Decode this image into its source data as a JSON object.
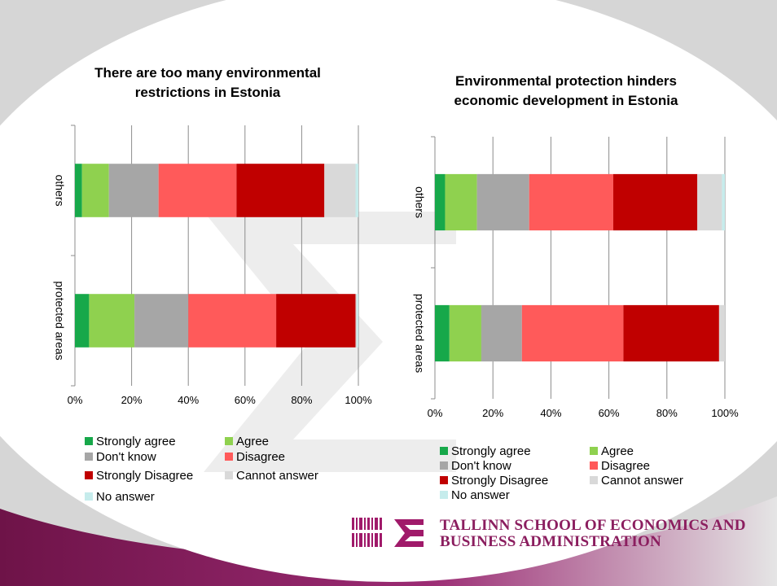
{
  "colors": {
    "Strongly agree": "#17a84a",
    "Agree": "#8fd14f",
    "Don't know": "#a6a6a6",
    "Disagree": "#ff5a5a",
    "Strongly Disagree": "#c00000",
    "Cannot answer": "#d9d9d9",
    "No answer": "#c6ecec",
    "brand": "#8b1e5f"
  },
  "legend_items": [
    "Strongly agree",
    "Agree",
    "Don't know",
    "Disagree",
    "Strongly Disagree",
    "Cannot answer",
    "No answer"
  ],
  "chart_data": [
    {
      "type": "bar",
      "orientation": "horizontal",
      "stacked": "100%",
      "title": "There are too many environmental restrictions in Estonia",
      "categories": [
        "others",
        "protected areas"
      ],
      "xlim": [
        0,
        100
      ],
      "xticks": [
        "0%",
        "20%",
        "40%",
        "60%",
        "80%",
        "100%"
      ],
      "grid": true,
      "legend_position": "bottom",
      "series": [
        {
          "name": "Strongly agree",
          "values": [
            2.5,
            5
          ]
        },
        {
          "name": "Agree",
          "values": [
            9.5,
            16
          ]
        },
        {
          "name": "Don't know",
          "values": [
            17.5,
            19
          ]
        },
        {
          "name": "Disagree",
          "values": [
            27.5,
            31
          ]
        },
        {
          "name": "Strongly Disagree",
          "values": [
            31,
            28
          ]
        },
        {
          "name": "Cannot answer",
          "values": [
            11,
            0.5
          ]
        },
        {
          "name": "No answer",
          "values": [
            1,
            0.5
          ]
        }
      ]
    },
    {
      "type": "bar",
      "orientation": "horizontal",
      "stacked": "100%",
      "title": "Environmental protection hinders economic development in Estonia",
      "categories": [
        "others",
        "protected areas"
      ],
      "xlim": [
        0,
        100
      ],
      "xticks": [
        "0%",
        "20%",
        "40%",
        "60%",
        "80%",
        "100%"
      ],
      "grid": true,
      "legend_position": "bottom",
      "series": [
        {
          "name": "Strongly agree",
          "values": [
            3.5,
            5
          ]
        },
        {
          "name": "Agree",
          "values": [
            11,
            11
          ]
        },
        {
          "name": "Don't know",
          "values": [
            18,
            14
          ]
        },
        {
          "name": "Disagree",
          "values": [
            29,
            35
          ]
        },
        {
          "name": "Strongly Disagree",
          "values": [
            29,
            33
          ]
        },
        {
          "name": "Cannot answer",
          "values": [
            8.5,
            2
          ]
        },
        {
          "name": "No answer",
          "values": [
            1,
            0
          ]
        }
      ]
    }
  ],
  "logo": {
    "line1": "TALLINN SCHOOL OF ECONOMICS AND",
    "line2": "BUSINESS ADMINISTRATION"
  }
}
